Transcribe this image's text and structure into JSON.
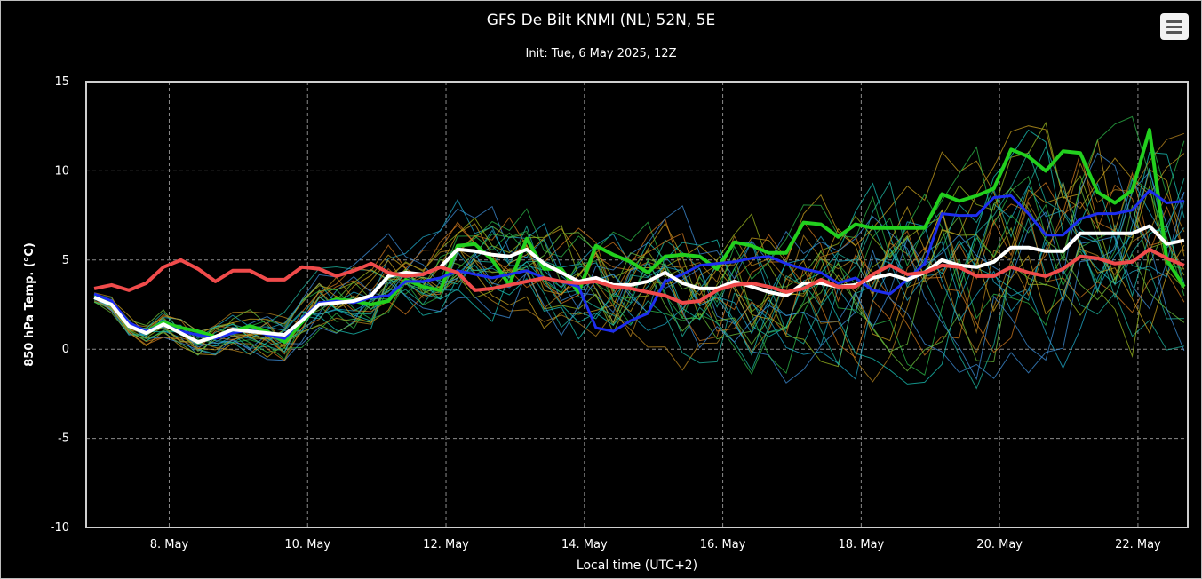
{
  "chart_data": {
    "type": "line",
    "title": "GFS De Bilt KNMI (NL) 52N, 5E",
    "subtitle": "Init: Tue, 6 May 2025, 12Z",
    "ylabel": "850 hPa Temp. (°C)",
    "xlabel": "Local time (UTC+2)",
    "ylim": [
      -10,
      15
    ],
    "yticks": [
      15,
      10,
      5,
      0,
      -5,
      -10
    ],
    "xrange": [
      6.8,
      22.72
    ],
    "xticks": [
      {
        "x": 8,
        "label": "8. May"
      },
      {
        "x": 10,
        "label": "10. May"
      },
      {
        "x": 12,
        "label": "12. May"
      },
      {
        "x": 14,
        "label": "14. May"
      },
      {
        "x": 16,
        "label": "16. May"
      },
      {
        "x": 18,
        "label": "18. May"
      },
      {
        "x": 20,
        "label": "20. May"
      },
      {
        "x": 22,
        "label": "22. May"
      }
    ],
    "grid": true,
    "x": [
      6.917,
      7.167,
      7.417,
      7.667,
      7.917,
      8.167,
      8.417,
      8.667,
      8.917,
      9.167,
      9.417,
      9.667,
      9.917,
      10.167,
      10.417,
      10.667,
      10.917,
      11.167,
      11.417,
      11.667,
      11.917,
      12.167,
      12.417,
      12.667,
      12.917,
      13.167,
      13.417,
      13.667,
      13.917,
      14.167,
      14.417,
      14.667,
      14.917,
      15.167,
      15.417,
      15.667,
      15.917,
      16.167,
      16.417,
      16.667,
      16.917,
      17.167,
      17.417,
      17.667,
      17.917,
      18.167,
      18.417,
      18.667,
      18.917,
      19.167,
      19.417,
      19.667,
      19.917,
      20.167,
      20.417,
      20.667,
      20.917,
      21.167,
      21.417,
      21.667,
      21.917,
      22.167,
      22.417,
      22.667
    ],
    "series": [
      {
        "role": "operational",
        "color": "#22d01e",
        "width": 4,
        "values": [
          3.0,
          2.6,
          1.4,
          1.0,
          1.5,
          1.2,
          1.0,
          0.7,
          1.0,
          1.3,
          1.0,
          0.4,
          1.5,
          2.5,
          2.8,
          2.7,
          2.5,
          2.7,
          3.9,
          3.5,
          3.3,
          5.8,
          5.9,
          5.0,
          3.6,
          6.2,
          4.5,
          4.5,
          3.2,
          5.8,
          5.3,
          4.9,
          4.3,
          5.2,
          5.3,
          5.2,
          4.5,
          6.0,
          5.8,
          5.4,
          5.4,
          7.1,
          7.0,
          6.3,
          7.0,
          6.8,
          6.8,
          6.8,
          6.8,
          8.7,
          8.3,
          8.6,
          9.0,
          11.2,
          10.8,
          10.0,
          11.1,
          11.0,
          8.8,
          8.2,
          8.9,
          12.3,
          5.0,
          3.5
        ]
      },
      {
        "role": "control",
        "color": "#1d2df0",
        "width": 3,
        "values": [
          3.1,
          2.7,
          1.5,
          1.0,
          1.4,
          1.0,
          0.8,
          0.6,
          0.9,
          1.1,
          0.8,
          0.6,
          1.7,
          2.6,
          2.7,
          2.6,
          2.9,
          3.0,
          3.8,
          3.8,
          4.0,
          4.4,
          4.2,
          4.0,
          4.2,
          4.4,
          4.0,
          3.8,
          3.5,
          1.2,
          1.0,
          1.6,
          2.0,
          3.8,
          4.2,
          4.7,
          4.8,
          4.9,
          5.1,
          5.2,
          4.8,
          4.5,
          4.3,
          3.7,
          4.0,
          3.3,
          3.1,
          3.9,
          4.8,
          7.6,
          7.5,
          7.5,
          8.5,
          8.6,
          7.6,
          6.4,
          6.4,
          7.3,
          7.6,
          7.6,
          7.8,
          8.9,
          8.2,
          8.3
        ]
      },
      {
        "role": "mean",
        "color": "#ffffff",
        "width": 4,
        "values": [
          2.9,
          2.5,
          1.3,
          0.9,
          1.4,
          0.9,
          0.4,
          0.7,
          1.1,
          1.0,
          0.9,
          0.8,
          1.6,
          2.5,
          2.6,
          2.7,
          3.0,
          4.1,
          4.3,
          4.2,
          4.6,
          5.6,
          5.5,
          5.3,
          5.2,
          5.6,
          4.8,
          4.3,
          3.8,
          4.0,
          3.6,
          3.6,
          3.8,
          4.3,
          3.7,
          3.4,
          3.4,
          3.8,
          3.5,
          3.2,
          3.0,
          3.7,
          3.7,
          3.5,
          3.6,
          4.0,
          4.2,
          3.9,
          4.3,
          5.0,
          4.7,
          4.6,
          4.9,
          5.7,
          5.7,
          5.5,
          5.5,
          6.5,
          6.5,
          6.5,
          6.5,
          6.9,
          5.9,
          6.1
        ]
      },
      {
        "role": "climatology",
        "color": "#f04b4b",
        "width": 4,
        "values": [
          3.4,
          3.6,
          3.3,
          3.7,
          4.6,
          5.0,
          4.5,
          3.8,
          4.4,
          4.4,
          3.9,
          3.9,
          4.6,
          4.5,
          4.1,
          4.4,
          4.8,
          4.3,
          4.1,
          4.2,
          4.6,
          4.3,
          3.3,
          3.4,
          3.6,
          3.8,
          4.0,
          3.8,
          3.7,
          3.8,
          3.5,
          3.4,
          3.2,
          3.0,
          2.6,
          2.7,
          3.3,
          3.6,
          3.7,
          3.5,
          3.2,
          3.4,
          3.9,
          3.5,
          3.5,
          4.2,
          4.7,
          4.2,
          4.3,
          4.7,
          4.6,
          4.1,
          4.1,
          4.6,
          4.3,
          4.1,
          4.5,
          5.2,
          5.1,
          4.8,
          4.9,
          5.6,
          5.1,
          4.7
        ]
      }
    ]
  }
}
